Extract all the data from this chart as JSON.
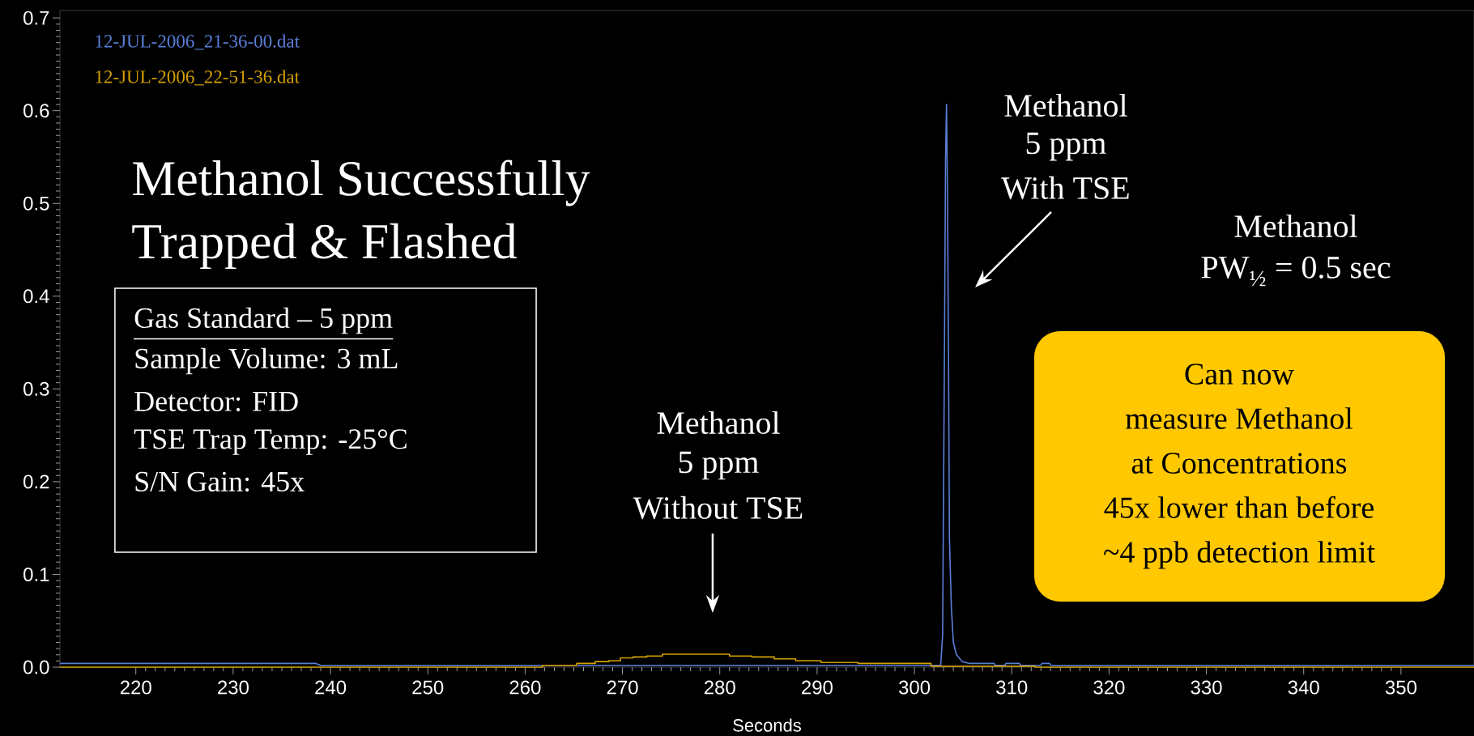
{
  "chart_data": {
    "type": "line",
    "xlabel": "Seconds",
    "xlim": [
      212.2,
      357.5
    ],
    "ylim": [
      0,
      0.708
    ],
    "xticks": [
      220,
      230,
      240,
      250,
      260,
      270,
      280,
      290,
      300,
      310,
      320,
      330,
      340,
      350
    ],
    "yticks": [
      {
        "value": 0,
        "label": "0.0"
      },
      0.1,
      0.2,
      0.3,
      0.4,
      0.5,
      0.6,
      0.7
    ],
    "legend": "top left",
    "marker": "none",
    "grid": false,
    "series": [
      {
        "name": "12-JUL-2006_21-36-00.dat",
        "color": "#5a7fd8",
        "x": [
          212.2,
          238.5,
          239,
          302.7,
          302.9,
          303.1,
          303.2,
          303.3,
          303.4,
          303.5,
          303.6,
          303.8,
          304.0,
          304.3,
          304.9,
          305.7,
          308.2,
          308.3,
          309.3,
          309.4,
          310.8,
          310.9,
          313.0,
          313.1,
          313.9,
          314.0,
          357.5
        ],
        "values": [
          0.004,
          0.004,
          0.002,
          0.002,
          0.035,
          0.364,
          0.547,
          0.607,
          0.509,
          0.344,
          0.138,
          0.064,
          0.027,
          0.014,
          0.006,
          0.004,
          0.004,
          0.002,
          0.002,
          0.004,
          0.004,
          0.002,
          0.002,
          0.004,
          0.004,
          0.002,
          0.002
        ]
      },
      {
        "name": "12-JUL-2006_22-51-36.dat",
        "color": "#d4a000",
        "type": "step",
        "x": [
          212.2,
          261.8,
          265.3,
          267.2,
          268.6,
          269.8,
          271.1,
          272.5,
          274.1,
          281.0,
          283.3,
          285.6,
          287.8,
          290.4,
          294.2,
          301.7,
          312.4,
          357.5
        ],
        "values": [
          0,
          0.002,
          0.004,
          0.006,
          0.007,
          0.01,
          0.011,
          0.012,
          0.014,
          0.012,
          0.011,
          0.009,
          0.007,
          0.005,
          0.004,
          0.001,
          0,
          0
        ]
      }
    ],
    "annotations": [
      "Methanol Successfully",
      "Trapped & Flashed",
      "Gas Standard – 5 ppm",
      "Sample Volume:  3 mL",
      "Detector:  FID",
      "TSE Trap Temp: -25°C",
      "S/N Gain:  45x",
      "Methanol",
      "5 ppm",
      "With TSE",
      "Methanol",
      "PW$_{½}$ = 0.5 sec",
      "Methanol",
      "5 ppm",
      "Without TSE",
      "Can now",
      "measure Methanol",
      "at Concentrations",
      "45x lower than before",
      "~4 ppb detection limit"
    ]
  }
}
